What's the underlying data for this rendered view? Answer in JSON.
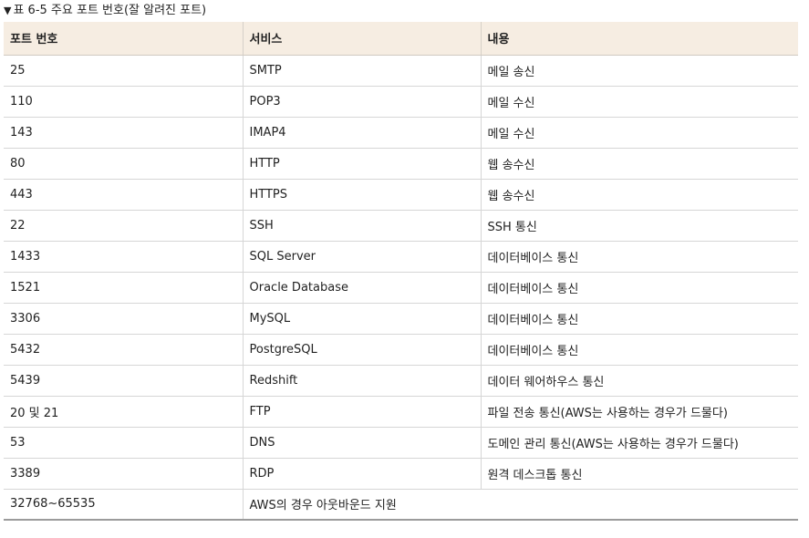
{
  "caption": {
    "marker": "▼",
    "text": "표 6-5 주요 포트 번호(잘 알려진 포트)"
  },
  "table": {
    "headers": [
      "포트 번호",
      "서비스",
      "내용"
    ],
    "rows": [
      [
        "25",
        "SMTP",
        "메일 송신"
      ],
      [
        "110",
        "POP3",
        "메일 수신"
      ],
      [
        "143",
        "IMAP4",
        "메일 수신"
      ],
      [
        "80",
        "HTTP",
        "웹 송수신"
      ],
      [
        "443",
        "HTTPS",
        "웹 송수신"
      ],
      [
        "22",
        "SSH",
        "SSH 통신"
      ],
      [
        "1433",
        "SQL Server",
        "데이터베이스 통신"
      ],
      [
        "1521",
        "Oracle Database",
        "데이터베이스 통신"
      ],
      [
        "3306",
        "MySQL",
        "데이터베이스 통신"
      ],
      [
        "5432",
        "PostgreSQL",
        "데이터베이스 통신"
      ],
      [
        "5439",
        "Redshift",
        "데이터 웨어하우스 통신"
      ],
      [
        "20 및 21",
        "FTP",
        "파일 전송 통신(AWS는 사용하는 경우가 드물다)"
      ],
      [
        "53",
        "DNS",
        "도메인 관리 통신(AWS는 사용하는 경우가 드물다)"
      ],
      [
        "3389",
        "RDP",
        "원격 데스크톱 통신"
      ],
      [
        "32768~65535",
        "AWS의 경우 아웃바운드 지원",
        ""
      ]
    ]
  },
  "colors": {
    "header_bg": "#f6ede2",
    "grid_line": "#d6d6d6",
    "bottom_rule": "#9b9b9b"
  }
}
